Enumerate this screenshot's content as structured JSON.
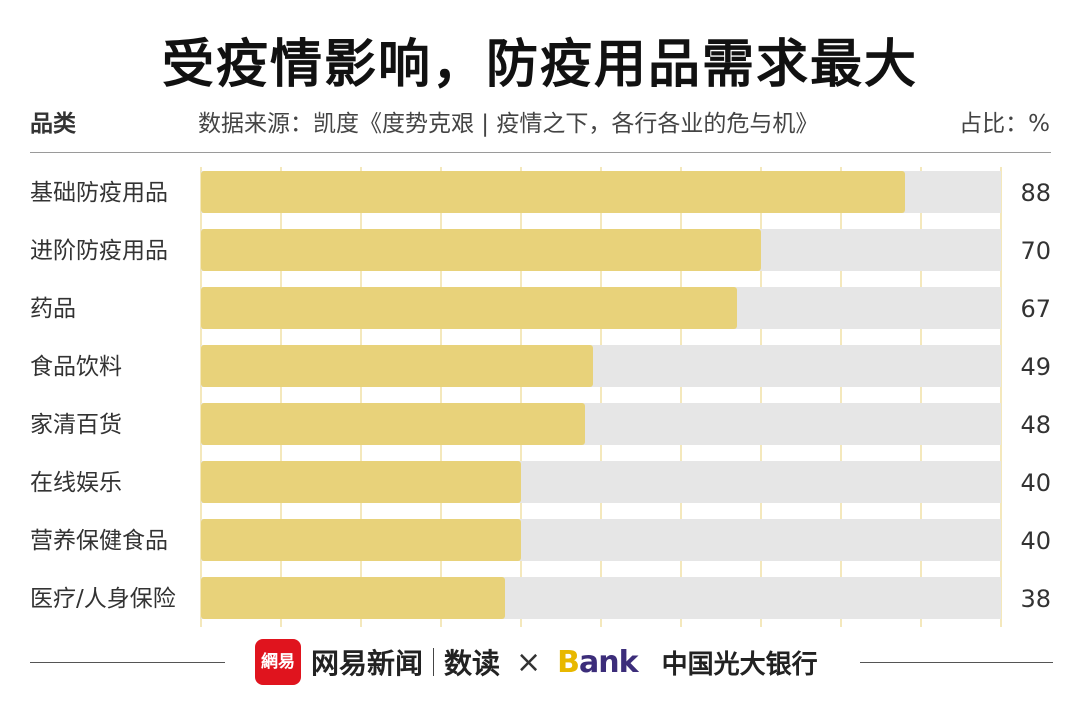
{
  "title": "受疫情影响，防疫用品需求最大",
  "header": {
    "category_label": "品类",
    "source": "数据来源：凯度《度势克艰 | 疫情之下，各行各业的危与机》",
    "unit": "占比：%"
  },
  "colors": {
    "bar": "#e8d27a",
    "track": "#e6e6e6",
    "grid": "#e8d27a"
  },
  "chart_data": {
    "type": "bar",
    "orientation": "horizontal",
    "categories": [
      "基础防疫用品",
      "进阶防疫用品",
      "药品",
      "食品饮料",
      "家清百货",
      "在线娱乐",
      "营养保健食品",
      "医疗/人身保险"
    ],
    "values": [
      88,
      70,
      67,
      49,
      48,
      40,
      40,
      38
    ],
    "xlim": [
      0,
      100
    ],
    "grid": true
  },
  "footer": {
    "logo_text": "網易",
    "brand": "网易新闻",
    "sub_brand": "数读",
    "times": "×",
    "bank_initial": "B",
    "bank_rest": "ank",
    "partner": "中国光大银行"
  }
}
